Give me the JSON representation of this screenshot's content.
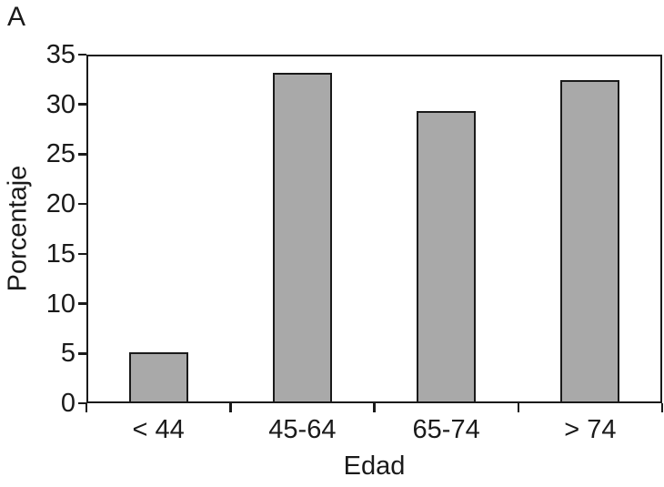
{
  "panel_label": "A",
  "chart_data": {
    "type": "bar",
    "title": "",
    "categories": [
      "< 44",
      "45-64",
      "65-74",
      "> 74"
    ],
    "values": [
      5.1,
      33.2,
      29.3,
      32.4
    ],
    "xlabel": "Edad",
    "ylabel": "Porcentaje",
    "ylim": [
      0,
      35
    ],
    "yticks": [
      0,
      5,
      10,
      15,
      20,
      25,
      30,
      35
    ],
    "grid": false,
    "legend": "none",
    "bar_fill_color": "#a9a9a9",
    "bar_border_color": "#1a1a1a",
    "axis_color": "#1a1a1a"
  }
}
